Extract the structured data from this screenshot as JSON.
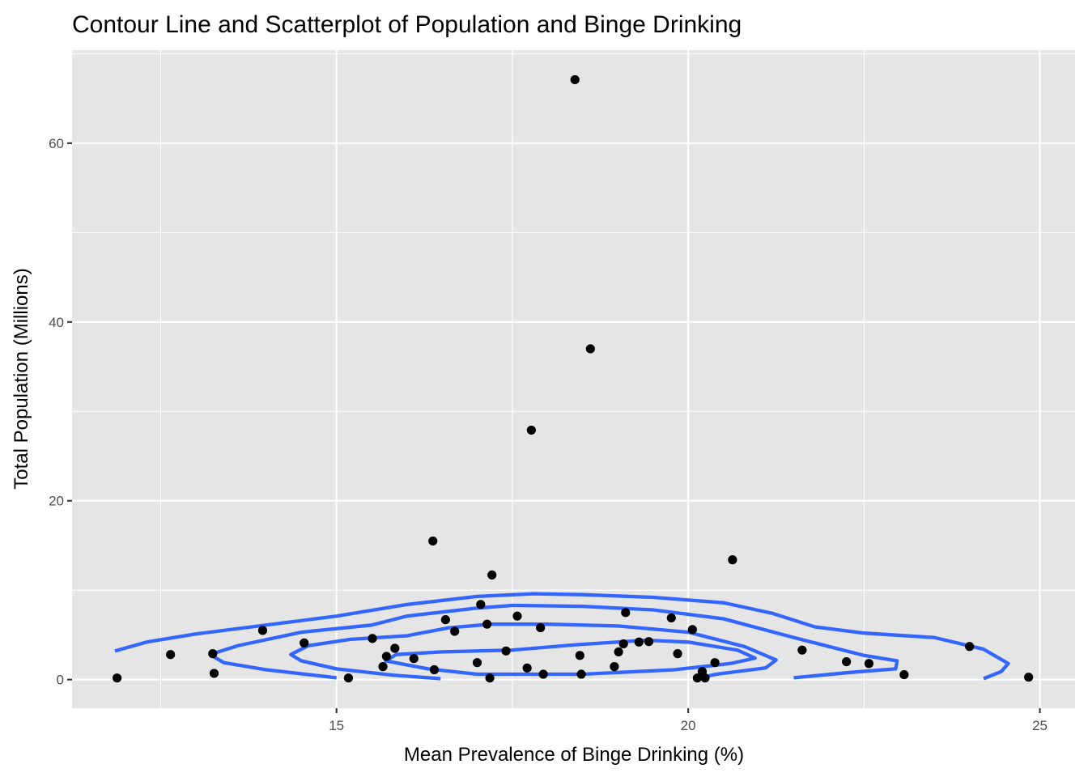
{
  "chart_data": {
    "type": "scatter",
    "title": "Contour Line and Scatterplot of Population and Binge Drinking",
    "xlabel": "Mean Prevalence of Binge Drinking (%)",
    "ylabel": "Total Population (Millions)",
    "xlim": [
      11.24,
      25.5
    ],
    "ylim": [
      -3.2,
      70.4
    ],
    "x_ticks": [
      15,
      20,
      25
    ],
    "x_tick_labels": [
      "15",
      "20",
      "25"
    ],
    "x_minor": [
      12.5,
      17.5,
      22.5
    ],
    "y_ticks": [
      0,
      20,
      40,
      60
    ],
    "y_tick_labels": [
      "0",
      "20",
      "40",
      "60"
    ],
    "y_minor": [
      10,
      30,
      50,
      70
    ],
    "grid": true,
    "legend": "none",
    "colors": {
      "points": "#000000",
      "contour": "#3366ff",
      "panel": "#e5e5e5",
      "grid": "#ffffff"
    },
    "points": [
      {
        "x": 11.88,
        "y": 0.18
      },
      {
        "x": 12.64,
        "y": 2.8
      },
      {
        "x": 13.24,
        "y": 2.9
      },
      {
        "x": 13.26,
        "y": 0.7
      },
      {
        "x": 13.95,
        "y": 5.5
      },
      {
        "x": 14.54,
        "y": 4.1
      },
      {
        "x": 15.17,
        "y": 0.18
      },
      {
        "x": 15.51,
        "y": 4.6
      },
      {
        "x": 15.66,
        "y": 1.45
      },
      {
        "x": 15.71,
        "y": 2.6
      },
      {
        "x": 15.83,
        "y": 3.5
      },
      {
        "x": 16.1,
        "y": 2.35
      },
      {
        "x": 16.37,
        "y": 15.5
      },
      {
        "x": 16.39,
        "y": 1.1
      },
      {
        "x": 16.55,
        "y": 6.7
      },
      {
        "x": 16.68,
        "y": 5.4
      },
      {
        "x": 17.0,
        "y": 1.9
      },
      {
        "x": 17.05,
        "y": 8.4
      },
      {
        "x": 17.14,
        "y": 6.2
      },
      {
        "x": 17.18,
        "y": 0.18
      },
      {
        "x": 17.21,
        "y": 11.7
      },
      {
        "x": 17.41,
        "y": 3.2
      },
      {
        "x": 17.57,
        "y": 7.1
      },
      {
        "x": 17.71,
        "y": 1.3
      },
      {
        "x": 17.77,
        "y": 27.9
      },
      {
        "x": 17.9,
        "y": 5.8
      },
      {
        "x": 17.94,
        "y": 0.6
      },
      {
        "x": 18.39,
        "y": 67.1
      },
      {
        "x": 18.46,
        "y": 2.7
      },
      {
        "x": 18.48,
        "y": 0.6
      },
      {
        "x": 18.61,
        "y": 37.0
      },
      {
        "x": 18.95,
        "y": 1.45
      },
      {
        "x": 19.01,
        "y": 3.1
      },
      {
        "x": 19.08,
        "y": 4.0
      },
      {
        "x": 19.11,
        "y": 7.5
      },
      {
        "x": 19.3,
        "y": 4.2
      },
      {
        "x": 19.44,
        "y": 4.25
      },
      {
        "x": 19.76,
        "y": 6.9
      },
      {
        "x": 19.85,
        "y": 2.9
      },
      {
        "x": 20.06,
        "y": 5.6
      },
      {
        "x": 20.13,
        "y": 0.18
      },
      {
        "x": 20.2,
        "y": 0.9
      },
      {
        "x": 20.24,
        "y": 0.18
      },
      {
        "x": 20.38,
        "y": 1.9
      },
      {
        "x": 20.63,
        "y": 13.4
      },
      {
        "x": 21.62,
        "y": 3.3
      },
      {
        "x": 22.25,
        "y": 2.0
      },
      {
        "x": 22.57,
        "y": 1.8
      },
      {
        "x": 23.07,
        "y": 0.55
      },
      {
        "x": 24.0,
        "y": 3.7
      },
      {
        "x": 24.84,
        "y": 0.27
      }
    ],
    "contours": [
      {
        "level": 1,
        "path": [
          [
            11.85,
            3.2
          ],
          [
            12.3,
            4.2
          ],
          [
            13.0,
            5.1
          ],
          [
            14.0,
            6.1
          ],
          [
            15.0,
            7.1
          ],
          [
            16.0,
            8.4
          ],
          [
            17.0,
            9.3
          ],
          [
            17.8,
            9.6
          ],
          [
            18.5,
            9.5
          ],
          [
            19.5,
            9.2
          ],
          [
            20.5,
            8.6
          ],
          [
            21.2,
            7.4
          ],
          [
            21.8,
            5.9
          ],
          [
            22.5,
            5.2
          ],
          [
            23.5,
            4.7
          ],
          [
            24.2,
            3.4
          ],
          [
            24.55,
            1.8
          ],
          [
            24.45,
            0.9
          ],
          [
            24.2,
            0.1
          ]
        ]
      },
      {
        "level": 2,
        "path": [
          [
            15.0,
            0.2
          ],
          [
            14.0,
            1.1
          ],
          [
            13.4,
            1.9
          ],
          [
            13.2,
            2.8
          ],
          [
            13.6,
            3.8
          ],
          [
            14.5,
            5.3
          ],
          [
            15.5,
            6.1
          ],
          [
            16.0,
            7.1
          ],
          [
            17.0,
            8.0
          ],
          [
            17.5,
            8.3
          ],
          [
            18.5,
            8.2
          ],
          [
            19.5,
            7.8
          ],
          [
            20.5,
            6.8
          ],
          [
            21.5,
            4.7
          ],
          [
            22.5,
            2.7
          ],
          [
            22.97,
            2.1
          ],
          [
            22.95,
            1.2
          ],
          [
            22.3,
            0.8
          ],
          [
            21.5,
            0.2
          ]
        ]
      },
      {
        "level": 3,
        "path": [
          [
            16.48,
            0.1
          ],
          [
            15.8,
            0.5
          ],
          [
            15.0,
            1.2
          ],
          [
            14.5,
            2.1
          ],
          [
            14.35,
            2.8
          ],
          [
            14.6,
            3.8
          ],
          [
            15.2,
            4.5
          ],
          [
            16.0,
            4.9
          ],
          [
            16.6,
            5.8
          ],
          [
            17.2,
            6.2
          ],
          [
            18.0,
            6.2
          ],
          [
            19.0,
            6.0
          ],
          [
            20.0,
            5.3
          ],
          [
            20.8,
            3.7
          ],
          [
            21.25,
            2.2
          ],
          [
            21.1,
            1.3
          ],
          [
            20.4,
            0.6
          ],
          [
            20.1,
            0.1
          ]
        ]
      },
      {
        "level": 4,
        "path": [
          [
            17.0,
            0.6
          ],
          [
            16.3,
            1.2
          ],
          [
            15.7,
            2.1
          ],
          [
            15.85,
            2.8
          ],
          [
            16.5,
            3.1
          ],
          [
            17.5,
            3.3
          ],
          [
            18.4,
            3.9
          ],
          [
            19.4,
            4.4
          ],
          [
            20.0,
            4.2
          ],
          [
            20.7,
            3.3
          ],
          [
            20.95,
            2.4
          ],
          [
            20.6,
            1.8
          ],
          [
            19.8,
            1.1
          ],
          [
            18.5,
            0.6
          ],
          [
            17.0,
            0.6
          ]
        ]
      }
    ]
  }
}
